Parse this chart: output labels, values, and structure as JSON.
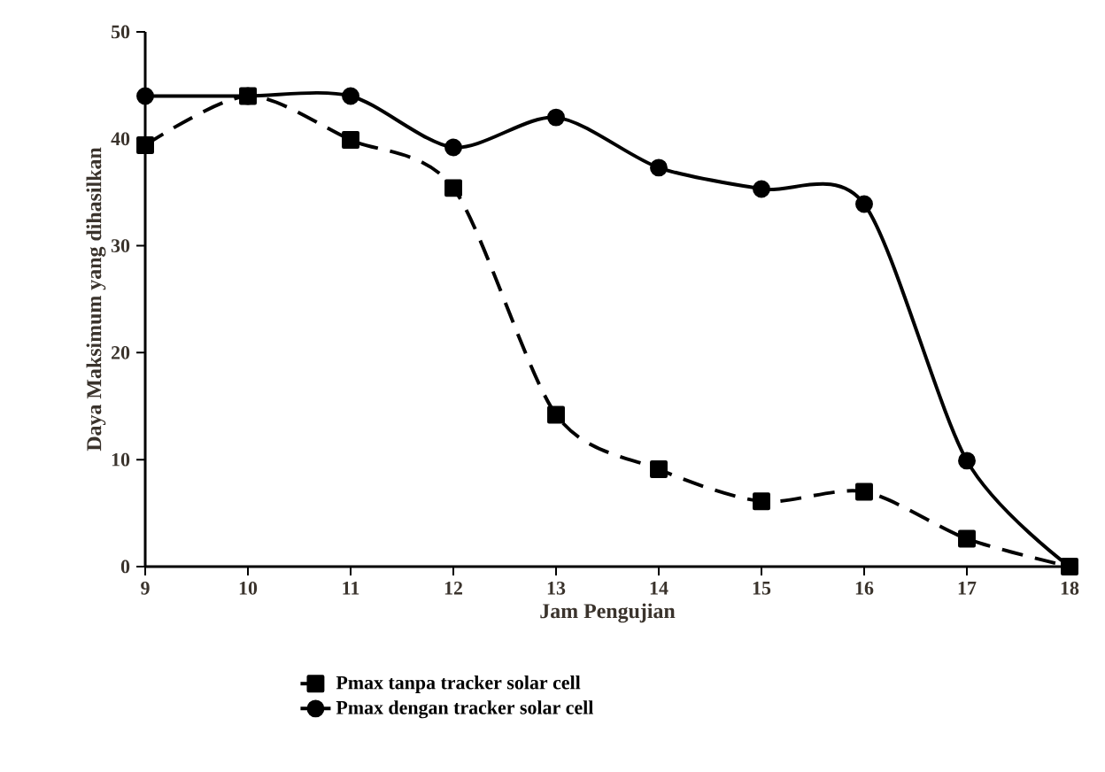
{
  "chart_data": {
    "type": "line",
    "xlabel": "Jam Pengujian",
    "ylabel": "Daya Maksimum yang dihasilkan",
    "x": [
      9,
      10,
      11,
      12,
      13,
      14,
      15,
      16,
      17,
      18
    ],
    "series": [
      {
        "name": "Pmax tanpa tracker solar cell",
        "color": "#000000",
        "marker": "square",
        "line_style": "dashed",
        "values": [
          39.4,
          44,
          39.9,
          35.4,
          14.2,
          9.1,
          6.1,
          7.0,
          2.6,
          0
        ]
      },
      {
        "name": "Pmax dengan tracker solar cell",
        "color": "#000000",
        "marker": "circle",
        "line_style": "solid",
        "values": [
          44,
          44,
          44,
          39.2,
          42,
          37.3,
          35.3,
          33.9,
          9.9,
          0
        ]
      }
    ],
    "xlim": [
      9,
      18
    ],
    "ylim": [
      0,
      50
    ],
    "xticks": [
      9,
      10,
      11,
      12,
      13,
      14,
      15,
      16,
      17,
      18
    ],
    "yticks": [
      0,
      10,
      20,
      30,
      40,
      50
    ],
    "grid": false,
    "legend": "bottom"
  }
}
